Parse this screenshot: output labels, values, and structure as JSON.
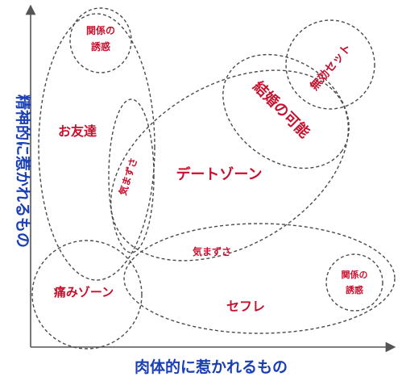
{
  "diagram": {
    "x_axis_label": "肉体的に惹かれるもの",
    "y_axis_label": "精神的に惹かれるもの",
    "zones": {
      "kankei_top": [
        "関係の",
        "誘惑"
      ],
      "tomodachi": "お友達",
      "kimazusa_vertical": "気まずさ",
      "date_zone": "デートゾーン",
      "kekkon": "結婚の可能",
      "mukou": "無効セット",
      "kimazusa_horizontal": "気まずさ",
      "itami_zone": "痛みゾーン",
      "sefure": "セフレ",
      "kankei_right": [
        "関係の",
        "誘惑"
      ]
    },
    "colors": {
      "zone_label": "#c8102e",
      "axis_label": "#1a3fb5",
      "outline": "#4a4a4a"
    }
  }
}
